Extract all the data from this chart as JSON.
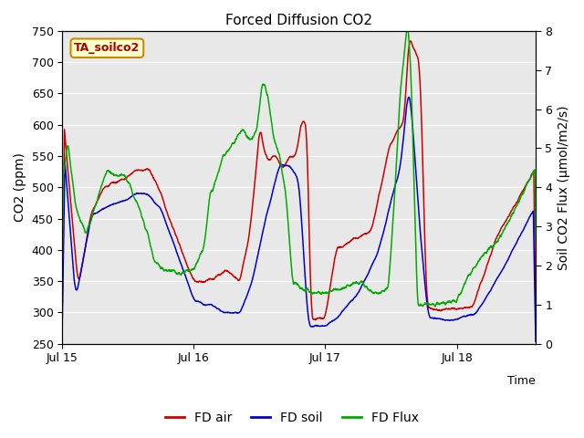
{
  "title": "Forced Diffusion CO2",
  "xlabel": "Time",
  "ylabel_left": "CO2 (ppm)",
  "ylabel_right": "Soil CO2 Flux (μmol/m2/s)",
  "annotation_text": "TA_soilco2",
  "annotation_facecolor": "#ffffcc",
  "annotation_edgecolor": "#cc8800",
  "annotation_textcolor": "#aa0000",
  "bg_color": "#e8e8e8",
  "line_red": "#cc0000",
  "line_blue": "#0000cc",
  "line_green": "#00aa00",
  "ylim_left": [
    250,
    750
  ],
  "ylim_right": [
    0.0,
    8.0
  ],
  "yticks_left": [
    250,
    300,
    350,
    400,
    450,
    500,
    550,
    600,
    650,
    700,
    750
  ],
  "yticks_right": [
    0.0,
    1.0,
    2.0,
    3.0,
    4.0,
    5.0,
    6.0,
    7.0,
    8.0
  ],
  "xtick_labels": [
    "Jul 15",
    "Jul 16",
    "Jul 17",
    "Jul 18"
  ],
  "legend_labels": [
    "FD air",
    "FD soil",
    "FD Flux"
  ],
  "legend_colors": [
    "#cc0000",
    "#0000cc",
    "#00aa00"
  ]
}
